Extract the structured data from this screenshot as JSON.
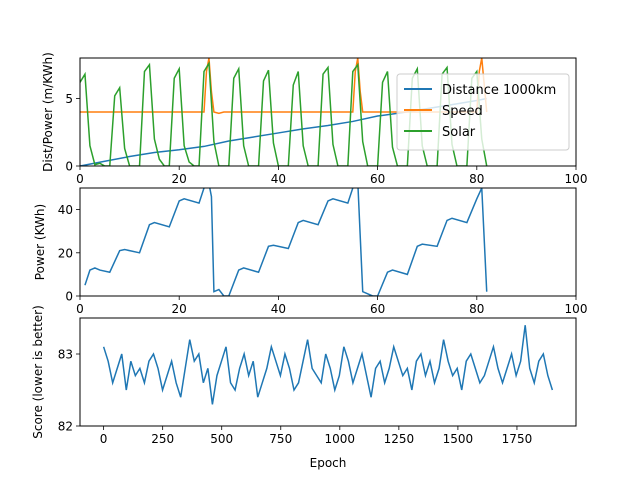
{
  "colors": {
    "blue": "#1f77b4",
    "orange": "#ff7f0e",
    "green": "#2ca02c"
  },
  "chart_data": [
    {
      "type": "line",
      "ylabel": "Dist/Power (m/KWh)",
      "xlim": [
        0,
        100
      ],
      "ylim": [
        0,
        8
      ],
      "xticks": [
        0,
        20,
        40,
        60,
        80,
        100
      ],
      "yticks": [
        0,
        5
      ],
      "legend": "right",
      "series": [
        {
          "name": "Distance 1000km",
          "color": "#1f77b4",
          "points": [
            [
              0,
              0
            ],
            [
              5,
              0.35
            ],
            [
              10,
              0.7
            ],
            [
              15,
              1.0
            ],
            [
              20,
              1.2
            ],
            [
              25,
              1.45
            ],
            [
              30,
              1.85
            ],
            [
              35,
              2.15
            ],
            [
              40,
              2.45
            ],
            [
              45,
              2.75
            ],
            [
              50,
              3.0
            ],
            [
              55,
              3.3
            ],
            [
              60,
              3.7
            ],
            [
              65,
              3.95
            ],
            [
              70,
              4.25
            ],
            [
              75,
              4.55
            ],
            [
              80,
              4.85
            ],
            [
              82,
              5.0
            ]
          ]
        },
        {
          "name": "Speed",
          "color": "#ff7f0e",
          "points": [
            [
              0,
              4.0
            ],
            [
              25,
              4.0
            ],
            [
              25.5,
              7.0
            ],
            [
              26,
              8.0
            ],
            [
              26.5,
              5.5
            ],
            [
              27,
              4.0
            ],
            [
              28,
              3.9
            ],
            [
              29,
              4.0
            ],
            [
              55,
              4.0
            ],
            [
              55.5,
              7.0
            ],
            [
              56,
              8.0
            ],
            [
              56.5,
              5.5
            ],
            [
              57,
              4.0
            ],
            [
              80,
              4.0
            ],
            [
              80.5,
              7.0
            ],
            [
              81,
              8.0
            ],
            [
              81.5,
              6.0
            ],
            [
              82,
              4.0
            ]
          ]
        },
        {
          "name": "Solar",
          "color": "#2ca02c",
          "points": [
            [
              0,
              6.2
            ],
            [
              1,
              6.8
            ],
            [
              2,
              1.5
            ],
            [
              3,
              0.1
            ],
            [
              4,
              0.2
            ],
            [
              5,
              0
            ],
            [
              6,
              0
            ],
            [
              7,
              5.2
            ],
            [
              8,
              5.8
            ],
            [
              9,
              1.3
            ],
            [
              10,
              0
            ],
            [
              11,
              0
            ],
            [
              12,
              0
            ],
            [
              13,
              7.0
            ],
            [
              14,
              7.5
            ],
            [
              15,
              2.0
            ],
            [
              16,
              0.5
            ],
            [
              17,
              0
            ],
            [
              18,
              0
            ],
            [
              19,
              6.5
            ],
            [
              20,
              7.2
            ],
            [
              21,
              1.5
            ],
            [
              22,
              0.3
            ],
            [
              23,
              0
            ],
            [
              24,
              0
            ],
            [
              25,
              7.0
            ],
            [
              26,
              7.6
            ],
            [
              27,
              1.8
            ],
            [
              28,
              0
            ],
            [
              29,
              0
            ],
            [
              30,
              0
            ],
            [
              31,
              6.5
            ],
            [
              32,
              7.2
            ],
            [
              33,
              1.5
            ],
            [
              34,
              0
            ],
            [
              35,
              0
            ],
            [
              36,
              0
            ],
            [
              37,
              6.3
            ],
            [
              38,
              7.1
            ],
            [
              39,
              1.7
            ],
            [
              40,
              0
            ],
            [
              41,
              0
            ],
            [
              42,
              0
            ],
            [
              43,
              6.0
            ],
            [
              44,
              7.0
            ],
            [
              45,
              1.5
            ],
            [
              46,
              0
            ],
            [
              47,
              0
            ],
            [
              48,
              0
            ],
            [
              49,
              6.8
            ],
            [
              50,
              7.3
            ],
            [
              51,
              1.6
            ],
            [
              52,
              0
            ],
            [
              53,
              0
            ],
            [
              54,
              0
            ],
            [
              55,
              7.0
            ],
            [
              56,
              7.5
            ],
            [
              57,
              1.8
            ],
            [
              58,
              0
            ],
            [
              59,
              0
            ],
            [
              60,
              0
            ],
            [
              61,
              6.2
            ],
            [
              62,
              7.0
            ],
            [
              63,
              1.4
            ],
            [
              64,
              0
            ],
            [
              65,
              0
            ],
            [
              66,
              0
            ],
            [
              67,
              6.5
            ],
            [
              68,
              7.2
            ],
            [
              69,
              1.5
            ],
            [
              70,
              0
            ],
            [
              71,
              0
            ],
            [
              72,
              0
            ],
            [
              73,
              6.8
            ],
            [
              74,
              7.3
            ],
            [
              75,
              1.6
            ],
            [
              76,
              0
            ],
            [
              77,
              0
            ],
            [
              78,
              0
            ],
            [
              79,
              6.5
            ],
            [
              80,
              7.0
            ],
            [
              81,
              2.0
            ],
            [
              82,
              0
            ]
          ]
        }
      ]
    },
    {
      "type": "line",
      "ylabel": "Power (KWh)",
      "xlim": [
        0,
        100
      ],
      "ylim": [
        0,
        50
      ],
      "xticks": [
        0,
        20,
        40,
        60,
        80,
        100
      ],
      "yticks": [
        0,
        20,
        40
      ],
      "series": [
        {
          "color": "#1f77b4",
          "points": [
            [
              1,
              5
            ],
            [
              2,
              12
            ],
            [
              3,
              13
            ],
            [
              4,
              12
            ],
            [
              6,
              11
            ],
            [
              8,
              21
            ],
            [
              9,
              21.5
            ],
            [
              12,
              20
            ],
            [
              14,
              33
            ],
            [
              15,
              34
            ],
            [
              18,
              32
            ],
            [
              20,
              44
            ],
            [
              21,
              45
            ],
            [
              24,
              43
            ],
            [
              25,
              50
            ],
            [
              26,
              52
            ],
            [
              26.5,
              46
            ],
            [
              27,
              2
            ],
            [
              28,
              3
            ],
            [
              29,
              0
            ],
            [
              30,
              0
            ],
            [
              32,
              12
            ],
            [
              33,
              13
            ],
            [
              36,
              11
            ],
            [
              38,
              23
            ],
            [
              39,
              23.5
            ],
            [
              42,
              22
            ],
            [
              44,
              34
            ],
            [
              45,
              35
            ],
            [
              48,
              33
            ],
            [
              50,
              44
            ],
            [
              51,
              45
            ],
            [
              54,
              43
            ],
            [
              55,
              50
            ],
            [
              56,
              53
            ],
            [
              57,
              2
            ],
            [
              59,
              0
            ],
            [
              60,
              0
            ],
            [
              62,
              11
            ],
            [
              63,
              12
            ],
            [
              66,
              10
            ],
            [
              68,
              23
            ],
            [
              69,
              24
            ],
            [
              72,
              23
            ],
            [
              74,
              35
            ],
            [
              75,
              36
            ],
            [
              78,
              34
            ],
            [
              80,
              45
            ],
            [
              81,
              50
            ],
            [
              82,
              2
            ]
          ]
        }
      ]
    },
    {
      "type": "line",
      "ylabel": "Score (lower is better)",
      "xlabel": "Epoch",
      "xlim": [
        -100,
        2000
      ],
      "ylim": [
        82,
        83.5
      ],
      "xticks": [
        0,
        250,
        500,
        750,
        1000,
        1250,
        1500,
        1750
      ],
      "yticks": [
        82,
        83
      ],
      "series": [
        {
          "color": "#1f77b4",
          "x_start": 0,
          "x_end": 1900,
          "values": [
            83.1,
            82.9,
            82.6,
            82.8,
            83.0,
            82.5,
            82.9,
            82.7,
            82.8,
            82.6,
            82.9,
            83.0,
            82.8,
            82.5,
            82.7,
            82.9,
            82.6,
            82.4,
            82.8,
            83.2,
            82.9,
            83.0,
            82.6,
            82.8,
            82.3,
            82.7,
            82.9,
            83.1,
            82.6,
            82.5,
            82.8,
            83.0,
            82.7,
            82.9,
            82.4,
            82.6,
            82.8,
            83.1,
            82.9,
            82.7,
            83.0,
            82.8,
            82.5,
            82.6,
            82.9,
            83.2,
            82.8,
            82.7,
            82.6,
            83.0,
            82.8,
            82.5,
            82.7,
            83.1,
            82.9,
            82.6,
            82.8,
            83.0,
            82.7,
            82.4,
            82.8,
            82.9,
            82.6,
            82.8,
            83.1,
            82.9,
            82.7,
            82.8,
            82.5,
            82.9,
            83.0,
            82.7,
            82.9,
            82.6,
            82.8,
            83.2,
            82.9,
            82.7,
            82.8,
            82.5,
            82.9,
            83.0,
            82.8,
            82.6,
            82.7,
            82.9,
            83.1,
            82.8,
            82.6,
            82.8,
            83.0,
            82.7,
            82.9,
            83.4,
            82.8,
            82.6,
            82.9,
            83.0,
            82.7,
            82.5
          ]
        }
      ]
    }
  ]
}
